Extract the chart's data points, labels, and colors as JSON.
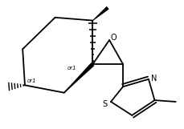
{
  "bg_color": "#ffffff",
  "line_color": "#000000",
  "lw": 1.3,
  "fig_width": 2.3,
  "fig_height": 1.61,
  "dpi": 100,
  "or1_label": "or1",
  "O_label": "O",
  "N_label": "N",
  "S_label": "S"
}
